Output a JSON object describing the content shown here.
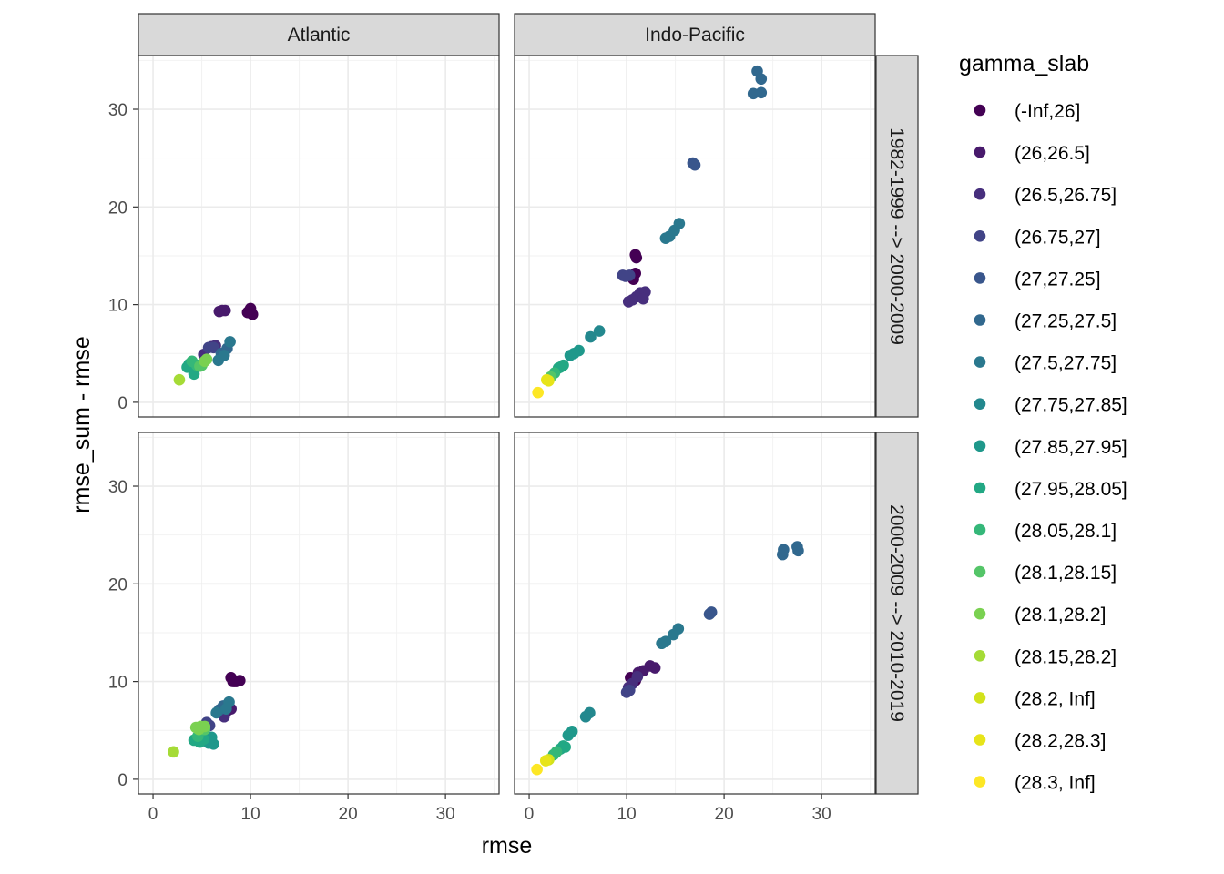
{
  "chart_data": {
    "type": "scatter",
    "xlabel": "rmse",
    "ylabel": "rmse_sum - rmse",
    "xlim": [
      -1.5,
      35.5
    ],
    "ylim": [
      -1.5,
      35.5
    ],
    "x_ticks": [
      0,
      10,
      20,
      30
    ],
    "y_ticks": [
      0,
      10,
      20,
      30
    ],
    "x_tick_labels": [
      "0",
      "10",
      "20",
      "30"
    ],
    "y_tick_labels": [
      "0",
      "10",
      "20",
      "30"
    ],
    "grid": true,
    "legend_position": "right",
    "col_facets": [
      "Atlantic",
      "Indo-Pacific"
    ],
    "row_facets": [
      "1982-1999 --> 2000-2009",
      "2000-2009 --> 2010-2019"
    ],
    "legend": {
      "title": "gamma_slab",
      "entries": [
        {
          "label": "(-Inf,26]",
          "color": "#440154"
        },
        {
          "label": "(26,26.5]",
          "color": "#481a6c"
        },
        {
          "label": "(26.5,26.75]",
          "color": "#472f7d"
        },
        {
          "label": "(26.75,27]",
          "color": "#414487"
        },
        {
          "label": "(27,27.25]",
          "color": "#39568c"
        },
        {
          "label": "(27.25,27.5]",
          "color": "#31688e"
        },
        {
          "label": "(27.5,27.75]",
          "color": "#2a788e"
        },
        {
          "label": "(27.75,27.85]",
          "color": "#23888e"
        },
        {
          "label": "(27.85,27.95]",
          "color": "#1f988b"
        },
        {
          "label": "(27.95,28.05]",
          "color": "#22a884"
        },
        {
          "label": "(28.05,28.1]",
          "color": "#35b779"
        },
        {
          "label": "(28.1,28.15]",
          "color": "#54c568"
        },
        {
          "label": "(28.1,28.2]",
          "color": "#7ad151"
        },
        {
          "label": "(28.15,28.2]",
          "color": "#a5db36"
        },
        {
          "label": "(28.2, Inf]",
          "color": "#d2e21b"
        },
        {
          "label": "(28.2,28.3]",
          "color": "#e7e419"
        },
        {
          "label": "(28.3, Inf]",
          "color": "#fde725"
        }
      ]
    },
    "panels": [
      {
        "col": 0,
        "row": 0,
        "points": [
          {
            "x": 9.9,
            "y": 9.4,
            "g": 0
          },
          {
            "x": 10.2,
            "y": 9.0,
            "g": 0
          },
          {
            "x": 9.7,
            "y": 9.2,
            "g": 0
          },
          {
            "x": 10.0,
            "y": 9.6,
            "g": 0
          },
          {
            "x": 6.8,
            "y": 9.3,
            "g": 1
          },
          {
            "x": 7.4,
            "y": 9.4,
            "g": 1
          },
          {
            "x": 7.1,
            "y": 9.4,
            "g": 1
          },
          {
            "x": 5.2,
            "y": 4.9,
            "g": 2
          },
          {
            "x": 6.0,
            "y": 5.7,
            "g": 2
          },
          {
            "x": 6.4,
            "y": 5.8,
            "g": 2
          },
          {
            "x": 5.7,
            "y": 5.6,
            "g": 3
          },
          {
            "x": 6.2,
            "y": 5.6,
            "g": 3
          },
          {
            "x": 7.0,
            "y": 5.0,
            "g": 5
          },
          {
            "x": 7.6,
            "y": 5.5,
            "g": 5
          },
          {
            "x": 7.9,
            "y": 6.2,
            "g": 6
          },
          {
            "x": 6.7,
            "y": 4.3,
            "g": 6
          },
          {
            "x": 7.3,
            "y": 4.8,
            "g": 6
          },
          {
            "x": 3.7,
            "y": 3.9,
            "g": 9
          },
          {
            "x": 4.0,
            "y": 3.5,
            "g": 9
          },
          {
            "x": 4.2,
            "y": 2.9,
            "g": 9
          },
          {
            "x": 3.5,
            "y": 3.6,
            "g": 9
          },
          {
            "x": 4.5,
            "y": 3.8,
            "g": 10
          },
          {
            "x": 4.0,
            "y": 4.2,
            "g": 10
          },
          {
            "x": 4.8,
            "y": 3.7,
            "g": 11
          },
          {
            "x": 5.0,
            "y": 3.8,
            "g": 11
          },
          {
            "x": 5.3,
            "y": 4.2,
            "g": 12
          },
          {
            "x": 5.5,
            "y": 4.4,
            "g": 12
          },
          {
            "x": 2.7,
            "y": 2.3,
            "g": 13
          }
        ]
      },
      {
        "col": 1,
        "row": 0,
        "points": [
          {
            "x": 23.4,
            "y": 33.9,
            "g": 5
          },
          {
            "x": 23.8,
            "y": 33.1,
            "g": 5
          },
          {
            "x": 23.0,
            "y": 31.6,
            "g": 5
          },
          {
            "x": 23.8,
            "y": 31.7,
            "g": 5
          },
          {
            "x": 16.8,
            "y": 24.5,
            "g": 4
          },
          {
            "x": 17.0,
            "y": 24.3,
            "g": 4
          },
          {
            "x": 15.4,
            "y": 18.3,
            "g": 6
          },
          {
            "x": 14.9,
            "y": 17.6,
            "g": 6
          },
          {
            "x": 14.4,
            "y": 17.0,
            "g": 6
          },
          {
            "x": 14.0,
            "y": 16.8,
            "g": 6
          },
          {
            "x": 10.9,
            "y": 15.1,
            "g": 0
          },
          {
            "x": 11.0,
            "y": 14.8,
            "g": 0
          },
          {
            "x": 10.9,
            "y": 13.2,
            "g": 0
          },
          {
            "x": 10.7,
            "y": 12.6,
            "g": 0
          },
          {
            "x": 9.6,
            "y": 13.0,
            "g": 3
          },
          {
            "x": 10.3,
            "y": 13.0,
            "g": 3
          },
          {
            "x": 9.9,
            "y": 12.9,
            "g": 3
          },
          {
            "x": 10.2,
            "y": 10.3,
            "g": 2
          },
          {
            "x": 10.6,
            "y": 10.5,
            "g": 2
          },
          {
            "x": 11.0,
            "y": 10.8,
            "g": 2
          },
          {
            "x": 11.4,
            "y": 11.2,
            "g": 2
          },
          {
            "x": 11.9,
            "y": 11.3,
            "g": 2
          },
          {
            "x": 11.7,
            "y": 10.6,
            "g": 2
          },
          {
            "x": 7.2,
            "y": 7.3,
            "g": 7
          },
          {
            "x": 6.3,
            "y": 6.7,
            "g": 7
          },
          {
            "x": 5.1,
            "y": 5.3,
            "g": 8
          },
          {
            "x": 4.6,
            "y": 5.0,
            "g": 8
          },
          {
            "x": 4.2,
            "y": 4.8,
            "g": 8
          },
          {
            "x": 3.5,
            "y": 3.8,
            "g": 9
          },
          {
            "x": 3.0,
            "y": 3.5,
            "g": 9
          },
          {
            "x": 3.2,
            "y": 3.6,
            "g": 9
          },
          {
            "x": 2.6,
            "y": 3.0,
            "g": 10
          },
          {
            "x": 2.2,
            "y": 2.6,
            "g": 11
          },
          {
            "x": 1.8,
            "y": 2.3,
            "g": 15
          },
          {
            "x": 2.0,
            "y": 2.2,
            "g": 15
          },
          {
            "x": 0.9,
            "y": 1.0,
            "g": 16
          }
        ]
      },
      {
        "col": 0,
        "row": 1,
        "points": [
          {
            "x": 8.0,
            "y": 10.4,
            "g": 0
          },
          {
            "x": 8.5,
            "y": 10.0,
            "g": 0
          },
          {
            "x": 8.9,
            "y": 10.1,
            "g": 0
          },
          {
            "x": 8.2,
            "y": 10.0,
            "g": 0
          },
          {
            "x": 7.6,
            "y": 7.0,
            "g": 1
          },
          {
            "x": 8.0,
            "y": 7.2,
            "g": 1
          },
          {
            "x": 7.0,
            "y": 6.8,
            "g": 2
          },
          {
            "x": 7.3,
            "y": 6.4,
            "g": 2
          },
          {
            "x": 5.8,
            "y": 5.5,
            "g": 3
          },
          {
            "x": 5.5,
            "y": 5.8,
            "g": 3
          },
          {
            "x": 6.8,
            "y": 7.1,
            "g": 5
          },
          {
            "x": 7.2,
            "y": 7.5,
            "g": 5
          },
          {
            "x": 6.5,
            "y": 6.8,
            "g": 6
          },
          {
            "x": 7.8,
            "y": 7.9,
            "g": 6
          },
          {
            "x": 7.5,
            "y": 7.2,
            "g": 6
          },
          {
            "x": 6.2,
            "y": 3.6,
            "g": 8
          },
          {
            "x": 5.7,
            "y": 3.7,
            "g": 8
          },
          {
            "x": 6.0,
            "y": 4.3,
            "g": 8
          },
          {
            "x": 4.2,
            "y": 4.0,
            "g": 9
          },
          {
            "x": 4.8,
            "y": 3.8,
            "g": 9
          },
          {
            "x": 5.2,
            "y": 4.1,
            "g": 9
          },
          {
            "x": 4.6,
            "y": 4.4,
            "g": 10
          },
          {
            "x": 5.3,
            "y": 5.1,
            "g": 11
          },
          {
            "x": 4.4,
            "y": 5.3,
            "g": 12
          },
          {
            "x": 4.9,
            "y": 5.4,
            "g": 12
          },
          {
            "x": 5.3,
            "y": 5.4,
            "g": 12
          },
          {
            "x": 4.7,
            "y": 5.1,
            "g": 12
          },
          {
            "x": 2.1,
            "y": 2.8,
            "g": 13
          }
        ]
      },
      {
        "col": 1,
        "row": 1,
        "points": [
          {
            "x": 27.5,
            "y": 23.8,
            "g": 5
          },
          {
            "x": 27.6,
            "y": 23.4,
            "g": 5
          },
          {
            "x": 26.1,
            "y": 23.5,
            "g": 5
          },
          {
            "x": 26.0,
            "y": 23.0,
            "g": 5
          },
          {
            "x": 18.5,
            "y": 16.9,
            "g": 4
          },
          {
            "x": 18.7,
            "y": 17.1,
            "g": 4
          },
          {
            "x": 15.3,
            "y": 15.4,
            "g": 6
          },
          {
            "x": 14.8,
            "y": 14.8,
            "g": 6
          },
          {
            "x": 14.0,
            "y": 14.1,
            "g": 6
          },
          {
            "x": 13.6,
            "y": 13.9,
            "g": 6
          },
          {
            "x": 10.4,
            "y": 10.4,
            "g": 0
          },
          {
            "x": 10.9,
            "y": 10.1,
            "g": 0
          },
          {
            "x": 12.4,
            "y": 11.6,
            "g": 1
          },
          {
            "x": 12.9,
            "y": 11.4,
            "g": 1
          },
          {
            "x": 11.7,
            "y": 11.1,
            "g": 1
          },
          {
            "x": 11.2,
            "y": 10.9,
            "g": 1
          },
          {
            "x": 10.2,
            "y": 9.4,
            "g": 2
          },
          {
            "x": 10.6,
            "y": 9.8,
            "g": 2
          },
          {
            "x": 11.1,
            "y": 10.5,
            "g": 2
          },
          {
            "x": 10.0,
            "y": 8.9,
            "g": 3
          },
          {
            "x": 10.3,
            "y": 9.1,
            "g": 3
          },
          {
            "x": 6.2,
            "y": 6.8,
            "g": 7
          },
          {
            "x": 5.8,
            "y": 6.4,
            "g": 7
          },
          {
            "x": 4.4,
            "y": 4.9,
            "g": 8
          },
          {
            "x": 4.0,
            "y": 4.5,
            "g": 8
          },
          {
            "x": 3.5,
            "y": 3.4,
            "g": 9
          },
          {
            "x": 3.2,
            "y": 3.1,
            "g": 9
          },
          {
            "x": 3.7,
            "y": 3.3,
            "g": 9
          },
          {
            "x": 2.8,
            "y": 2.8,
            "g": 10
          },
          {
            "x": 2.5,
            "y": 2.5,
            "g": 10
          },
          {
            "x": 2.0,
            "y": 2.0,
            "g": 14
          },
          {
            "x": 1.7,
            "y": 1.9,
            "g": 15
          },
          {
            "x": 0.8,
            "y": 1.0,
            "g": 16
          }
        ]
      }
    ]
  }
}
